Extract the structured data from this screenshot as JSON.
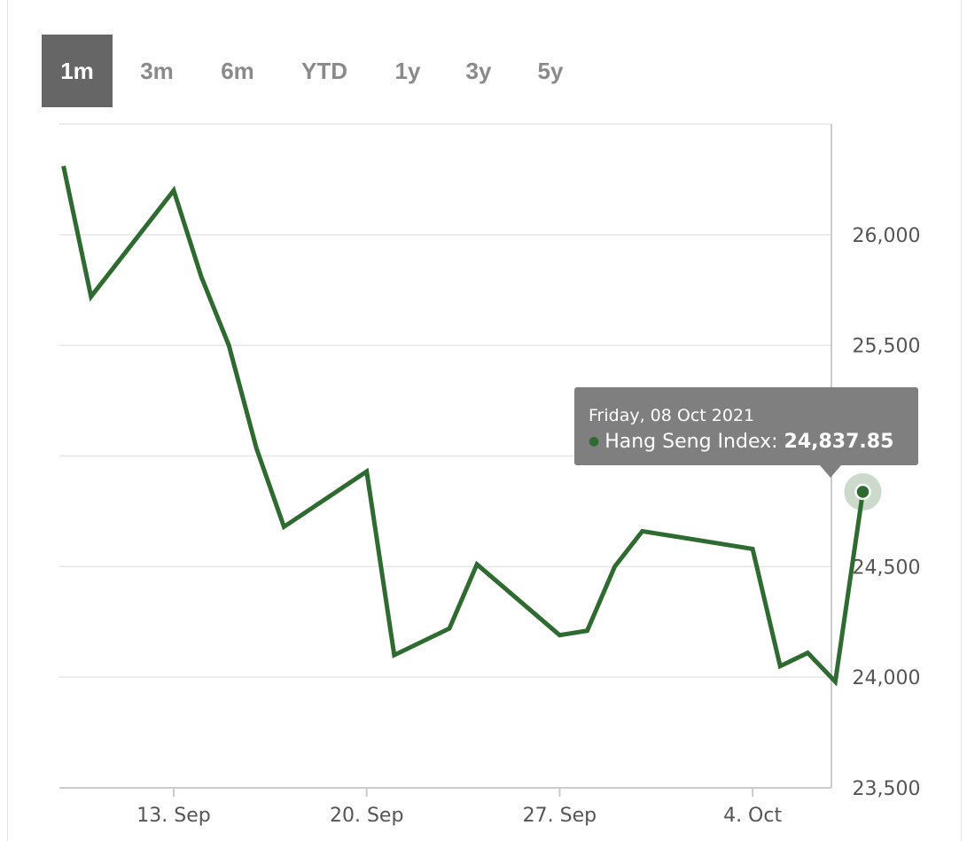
{
  "range_selector": {
    "buttons": [
      "1m",
      "3m",
      "6m",
      "YTD",
      "1y",
      "3y",
      "5y"
    ],
    "active": "1m"
  },
  "colors": {
    "line": "#2f6b30",
    "grid": "#e6e6e6",
    "axis": "#cccccc",
    "tooltip_bg": "#7f7f7f",
    "active_button": "#666666"
  },
  "tooltip": {
    "date": "Friday, 08 Oct 2021",
    "series_label": "Hang Seng Index:",
    "value": "24,837.85"
  },
  "chart_data": {
    "type": "line",
    "x_tick_labels": [
      "13. Sep",
      "20. Sep",
      "27. Sep",
      "4. Oct"
    ],
    "x_ticks": [
      "2021-09-13",
      "2021-09-20",
      "2021-09-27",
      "2021-10-04"
    ],
    "y_tick_labels": [
      "26,000",
      "25,500",
      "24,500",
      "24,000",
      "23,500"
    ],
    "ylim": [
      23500,
      26500
    ],
    "grid": true,
    "y_axis_side": "right",
    "series": [
      {
        "name": "Hang Seng Index",
        "x": [
          "2021-09-09",
          "2021-09-10",
          "2021-09-13",
          "2021-09-14",
          "2021-09-15",
          "2021-09-16",
          "2021-09-17",
          "2021-09-20",
          "2021-09-21",
          "2021-09-23",
          "2021-09-24",
          "2021-09-27",
          "2021-09-28",
          "2021-09-29",
          "2021-09-30",
          "2021-10-04",
          "2021-10-05",
          "2021-10-06",
          "2021-10-07",
          "2021-10-08"
        ],
        "values": [
          26310,
          25720,
          26200,
          25810,
          25500,
          25035,
          24680,
          24930,
          24100,
          24220,
          24510,
          24190,
          24210,
          24500,
          24660,
          24580,
          24050,
          24110,
          23980,
          24837.85
        ]
      }
    ],
    "highlighted_point": {
      "x": "2021-10-08",
      "value": 24837.85
    }
  }
}
